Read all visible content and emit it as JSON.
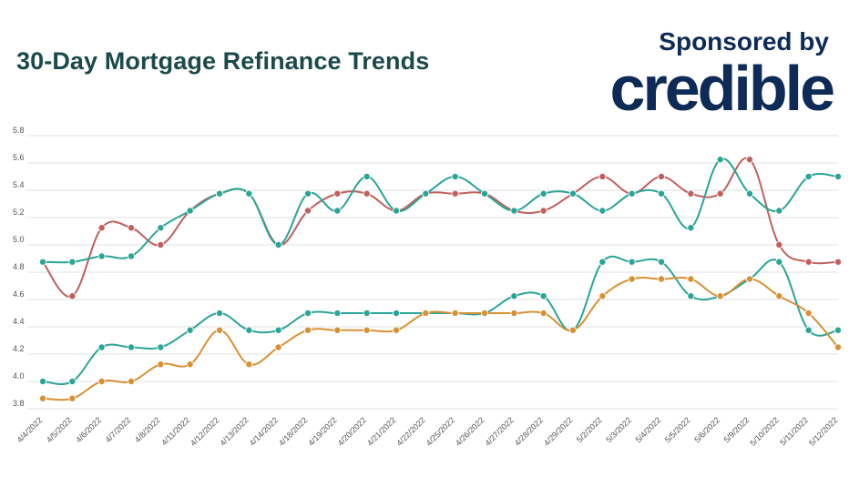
{
  "header": {
    "title": "30-Day Mortgage Refinance Trends",
    "sponsor_text": "Sponsored by",
    "brand": "credible"
  },
  "colors": {
    "title": "#1c4a4a",
    "brand": "#0e2a56",
    "teal": "#2aa597",
    "red": "#c0605e",
    "orange": "#d89135",
    "grid": "#e2e2e2"
  },
  "chart_data": {
    "type": "line",
    "title": "30-Day Mortgage Refinance Trends",
    "xlabel": "",
    "ylabel": "",
    "ylim": [
      3.8,
      5.8
    ],
    "yticks": [
      "3.8",
      "4.0",
      "4.2",
      "4.4",
      "4.6",
      "4.8",
      "5.0",
      "5.2",
      "5.4",
      "5.6",
      "5.8"
    ],
    "grid": true,
    "x": [
      "4/4/2022",
      "4/5/2022",
      "4/6/2022",
      "4/7/2022",
      "4/8/2022",
      "4/11/2022",
      "4/12/2022",
      "4/13/2022",
      "4/14/2022",
      "4/18/2022",
      "4/19/2022",
      "4/20/2022",
      "4/21/2022",
      "4/22/2022",
      "4/25/2022",
      "4/26/2022",
      "4/27/2022",
      "4/28/2022",
      "4/29/2022",
      "5/2/2022",
      "5/3/2022",
      "5/4/2022",
      "5/5/2022",
      "5/6/2022",
      "5/9/2022",
      "5/10/2022",
      "5/11/2022",
      "5/12/2022"
    ],
    "series": [
      {
        "color": "#c0605e",
        "values": [
          4.875,
          4.625,
          5.125,
          5.125,
          5.0,
          5.25,
          5.375,
          5.375,
          5.0,
          5.25,
          5.375,
          5.375,
          5.25,
          5.375,
          5.375,
          5.375,
          5.25,
          5.25,
          5.375,
          5.5,
          5.375,
          5.5,
          5.375,
          5.375,
          5.625,
          5.0,
          4.875,
          4.875
        ]
      },
      {
        "color": "#2aa597",
        "values": [
          4.875,
          4.875,
          4.917,
          4.917,
          5.125,
          5.25,
          5.375,
          5.375,
          5.0,
          5.375,
          5.25,
          5.5,
          5.25,
          5.375,
          5.5,
          5.375,
          5.25,
          5.375,
          5.375,
          5.25,
          5.375,
          5.375,
          5.125,
          5.625,
          5.375,
          5.25,
          5.5,
          5.5
        ]
      },
      {
        "color": "#2aa597",
        "values": [
          4.0,
          4.0,
          4.25,
          4.25,
          4.25,
          4.375,
          4.5,
          4.375,
          4.375,
          4.5,
          4.5,
          4.5,
          4.5,
          4.5,
          4.5,
          4.5,
          4.625,
          4.625,
          4.375,
          4.875,
          4.875,
          4.875,
          4.625,
          4.625,
          4.75,
          4.875,
          4.375,
          4.375
        ]
      },
      {
        "color": "#d89135",
        "values": [
          3.875,
          3.875,
          4.0,
          4.0,
          4.125,
          4.125,
          4.375,
          4.125,
          4.25,
          4.375,
          4.375,
          4.375,
          4.375,
          4.5,
          4.5,
          4.5,
          4.5,
          4.5,
          4.375,
          4.625,
          4.75,
          4.75,
          4.75,
          4.625,
          4.75,
          4.625,
          4.5,
          4.25
        ]
      }
    ]
  }
}
